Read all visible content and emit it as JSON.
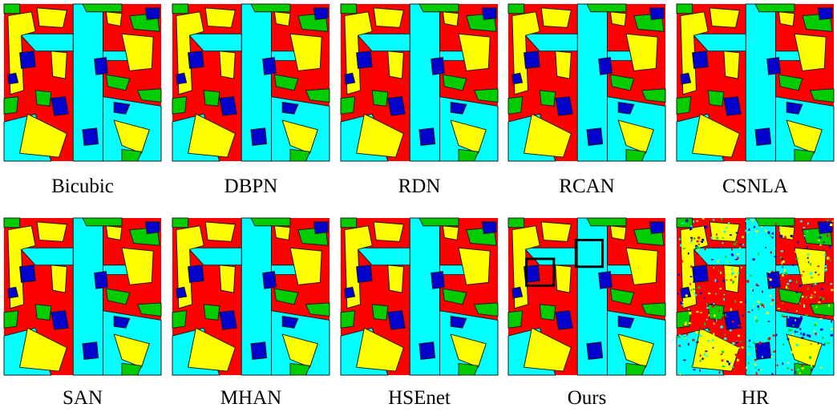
{
  "panels": [
    {
      "label": "Bicubic"
    },
    {
      "label": "DBPN"
    },
    {
      "label": "RDN"
    },
    {
      "label": "RCAN"
    },
    {
      "label": "CSNLA"
    },
    {
      "label": "SAN"
    },
    {
      "label": "MHAN"
    },
    {
      "label": "HSEnet"
    },
    {
      "label": "Ours"
    },
    {
      "label": "HR"
    }
  ]
}
